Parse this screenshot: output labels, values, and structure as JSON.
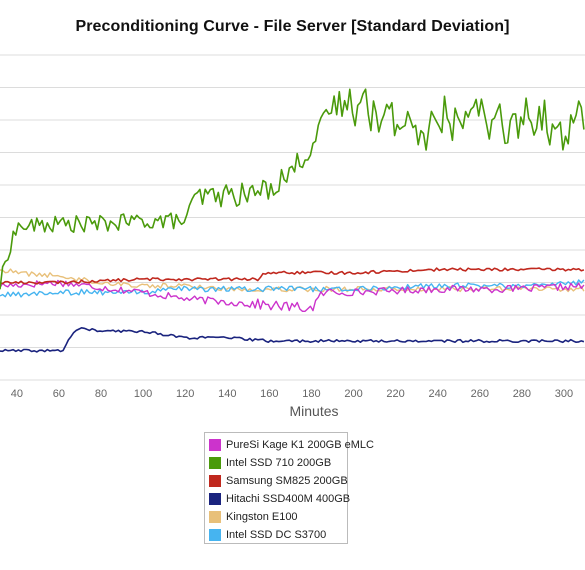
{
  "chart_data": {
    "type": "line",
    "title": "Preconditioning Curve - File Server [Standard Deviation]",
    "xlabel": "Minutes",
    "ylabel": "",
    "xlim": [
      32,
      310
    ],
    "ylim": [
      0,
      100
    ],
    "x_ticks": [
      40,
      60,
      80,
      100,
      120,
      140,
      160,
      180,
      200,
      220,
      240,
      260,
      280,
      300
    ],
    "grid": "horizontal",
    "legend_position": "bottom",
    "series": [
      {
        "name": "PureSi Kage K1 200GB eMLC",
        "color": "#cc33cc",
        "x": [
          32,
          60,
          100,
          120,
          140,
          160,
          180,
          186,
          200,
          240,
          280,
          310
        ],
        "y": [
          29,
          30,
          27,
          25,
          24,
          23,
          22,
          27,
          27,
          28,
          28,
          29
        ]
      },
      {
        "name": "Intel SSD 710 200GB",
        "color": "#4a9a0b",
        "x": [
          32,
          36,
          40,
          60,
          80,
          100,
          120,
          123,
          125,
          140,
          150,
          160,
          170,
          180,
          190,
          200,
          210,
          220,
          230,
          240,
          250,
          260,
          270,
          280,
          290,
          300,
          310
        ],
        "y": [
          29,
          40,
          47,
          48,
          48,
          49,
          49,
          53,
          56,
          57,
          57,
          59,
          64,
          72,
          84,
          86,
          85,
          79,
          78,
          80,
          79,
          81,
          79,
          80,
          79,
          77,
          79
        ]
      },
      {
        "name": "Samsung SM825 200GB",
        "color": "#c0281e",
        "x": [
          32,
          60,
          100,
          120,
          140,
          155,
          158,
          180,
          200,
          240,
          280,
          300,
          310
        ],
        "y": [
          30,
          30,
          31,
          31,
          31,
          31,
          33,
          33,
          33,
          34,
          34,
          34,
          34
        ]
      },
      {
        "name": "Hitachi SSD400M 400GB",
        "color": "#1a237e",
        "x": [
          32,
          50,
          62,
          66,
          70,
          80,
          100,
          120,
          140,
          160,
          180,
          200,
          240,
          280,
          310
        ],
        "y": [
          9,
          9,
          9,
          14,
          16,
          15,
          15,
          13,
          13,
          12,
          12,
          12,
          12,
          12,
          12
        ]
      },
      {
        "name": "Kingston E100",
        "color": "#e8c07a",
        "x": [
          32,
          40,
          60,
          80,
          100,
          120,
          140,
          160,
          180,
          200,
          240,
          280,
          310
        ],
        "y": [
          34,
          33,
          32,
          30,
          29,
          29,
          28,
          28,
          28,
          28,
          28,
          28,
          28
        ]
      },
      {
        "name": "Intel SSD DC S3700",
        "color": "#46b4f0",
        "x": [
          32,
          60,
          100,
          120,
          140,
          160,
          180,
          200,
          240,
          280,
          310
        ],
        "y": [
          26,
          27,
          27,
          28,
          28,
          28,
          28,
          28,
          29,
          29,
          30
        ]
      }
    ]
  }
}
